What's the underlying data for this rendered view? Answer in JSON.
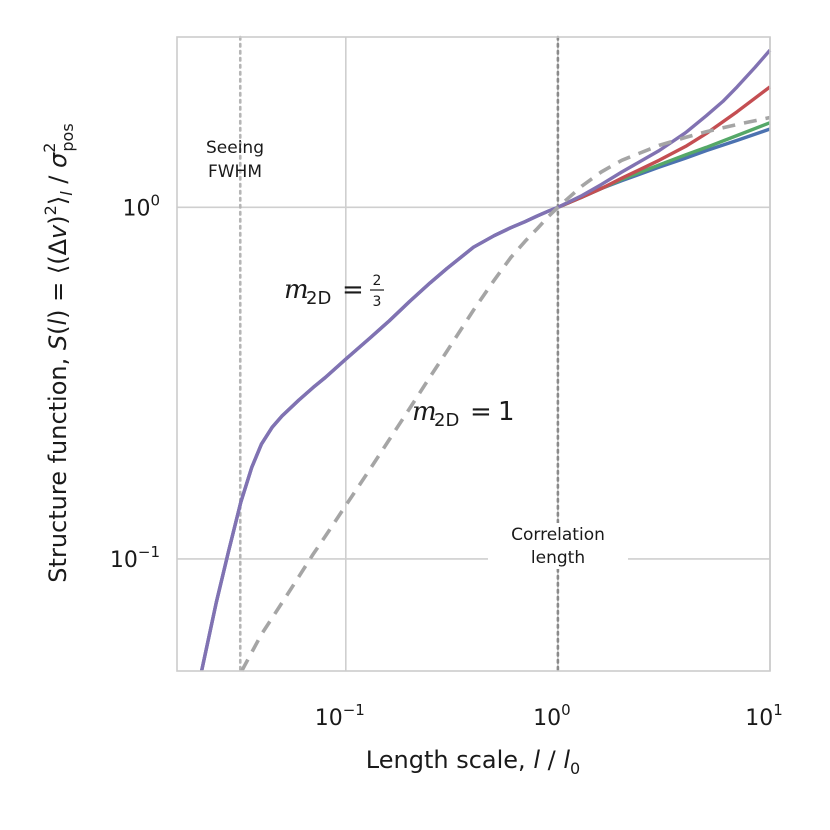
{
  "chart_data": {
    "type": "line",
    "xscale": "log",
    "yscale": "log",
    "xlim": [
      0.016,
      10
    ],
    "ylim": [
      0.048,
      3.05
    ],
    "xlabel": "Length scale, l / l0",
    "ylabel": "Structure function, S(l) = <(Δv)^2>_l / σ_pos^2",
    "x_ticks": [
      {
        "value": 0.1,
        "base": "10",
        "exp": "−1"
      },
      {
        "value": 1,
        "base": "10",
        "exp": "0"
      },
      {
        "value": 10,
        "base": "10",
        "exp": "1"
      }
    ],
    "y_ticks": [
      {
        "value": 0.1,
        "base": "10",
        "exp": "−1"
      },
      {
        "value": 1,
        "base": "10",
        "exp": "0"
      }
    ],
    "grid": true,
    "vlines": [
      {
        "x": 0.0318,
        "label_lines": [
          "Seeing",
          "FWHM"
        ],
        "style": "dotted",
        "color": "#b5b5b5"
      },
      {
        "x": 1.0,
        "label_lines": [
          "Correlation",
          "length"
        ],
        "style": "dotted",
        "color": "#8a8a8a"
      }
    ],
    "series": [
      {
        "name": "m2D = 2/3 (blue)",
        "color": "#4c72b0",
        "style": "solid",
        "x": [
          0.0209,
          0.0245,
          0.028,
          0.032,
          0.036,
          0.04,
          0.045,
          0.05,
          0.06,
          0.07,
          0.08,
          0.1,
          0.13,
          0.16,
          0.2,
          0.25,
          0.3,
          0.4,
          0.5,
          0.6,
          0.7,
          0.8,
          0.9,
          1.0,
          1.3,
          1.6,
          2.0,
          3.0,
          4.0,
          5.0,
          7.0,
          10.0
        ],
        "y": [
          0.048,
          0.075,
          0.105,
          0.145,
          0.182,
          0.212,
          0.237,
          0.255,
          0.283,
          0.307,
          0.328,
          0.37,
          0.425,
          0.475,
          0.54,
          0.61,
          0.67,
          0.77,
          0.83,
          0.875,
          0.91,
          0.945,
          0.975,
          1.0,
          1.07,
          1.13,
          1.19,
          1.3,
          1.38,
          1.45,
          1.55,
          1.67
        ]
      },
      {
        "name": "green",
        "color": "#55a868",
        "style": "solid",
        "x": [
          1.0,
          1.3,
          1.6,
          2.0,
          3.0,
          4.0,
          5.0,
          7.0,
          10.0
        ],
        "y": [
          1.0,
          1.07,
          1.13,
          1.2,
          1.32,
          1.41,
          1.48,
          1.6,
          1.74
        ]
      },
      {
        "name": "red",
        "color": "#c44e52",
        "style": "solid",
        "x": [
          1.0,
          1.3,
          1.6,
          2.0,
          3.0,
          4.0,
          5.0,
          7.0,
          10.0
        ],
        "y": [
          1.0,
          1.07,
          1.13,
          1.21,
          1.36,
          1.49,
          1.62,
          1.87,
          2.2
        ]
      },
      {
        "name": "purple (m2D = 2/3)",
        "color": "#8172b2",
        "style": "solid",
        "x": [
          0.0209,
          0.0245,
          0.028,
          0.032,
          0.036,
          0.04,
          0.045,
          0.05,
          0.06,
          0.07,
          0.08,
          0.1,
          0.13,
          0.16,
          0.2,
          0.25,
          0.3,
          0.4,
          0.5,
          0.6,
          0.7,
          0.8,
          0.9,
          1.0,
          1.3,
          1.6,
          2.0,
          3.0,
          4.0,
          5.0,
          6.0,
          7.0,
          8.5,
          10.0
        ],
        "y": [
          0.048,
          0.075,
          0.105,
          0.145,
          0.182,
          0.212,
          0.237,
          0.255,
          0.283,
          0.307,
          0.328,
          0.37,
          0.425,
          0.475,
          0.54,
          0.61,
          0.67,
          0.77,
          0.83,
          0.875,
          0.91,
          0.945,
          0.975,
          1.0,
          1.08,
          1.16,
          1.26,
          1.45,
          1.63,
          1.82,
          2.0,
          2.2,
          2.5,
          2.8
        ]
      },
      {
        "name": "m2D = 1 (dashed)",
        "color": "#a5a5a5",
        "style": "dashed",
        "x": [
          0.0323,
          0.04,
          0.05,
          0.06,
          0.07,
          0.08,
          0.1,
          0.13,
          0.16,
          0.2,
          0.25,
          0.3,
          0.4,
          0.5,
          0.6,
          0.7,
          0.8,
          0.9,
          1.0,
          1.3,
          1.6,
          2.0,
          3.0,
          4.0,
          5.0,
          7.0,
          10.0
        ],
        "y": [
          0.048,
          0.061,
          0.075,
          0.089,
          0.103,
          0.116,
          0.142,
          0.18,
          0.218,
          0.268,
          0.33,
          0.39,
          0.51,
          0.62,
          0.72,
          0.8,
          0.87,
          0.94,
          1.0,
          1.15,
          1.26,
          1.36,
          1.5,
          1.58,
          1.64,
          1.72,
          1.8
        ]
      }
    ],
    "annotations": {
      "m23": {
        "var": "m",
        "sub": "2D",
        "eq": "=",
        "num": "2",
        "den": "3"
      },
      "m1": {
        "var": "m",
        "sub": "2D",
        "eq": "=",
        "val": "1"
      }
    }
  },
  "labels": {
    "xlabel_prefix": "Length scale, ",
    "xlabel_var": "l",
    "xlabel_slash": " / ",
    "xlabel_var2": "l",
    "xlabel_sub": "0",
    "ylabel_prefix": "Structure function, ",
    "ylabel_S": "S",
    "ylabel_paren_l": "(",
    "ylabel_l": "l",
    "ylabel_paren_r": ")",
    "ylabel_eq": " = ⟨(Δ",
    "ylabel_v": "v",
    "ylabel_close": ")",
    "ylabel_sq": "2",
    "ylabel_angle": "⟩",
    "ylabel_l_sub": "l",
    "ylabel_slash": " / ",
    "ylabel_sigma": "σ",
    "ylabel_sigma_sup": "2",
    "ylabel_sigma_sub": "pos"
  }
}
